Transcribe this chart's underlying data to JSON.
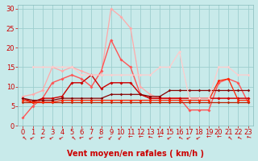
{
  "background_color": "#c8eaea",
  "grid_color": "#9ecece",
  "xlim": [
    -0.5,
    23.5
  ],
  "ylim": [
    0,
    31
  ],
  "yticks": [
    0,
    5,
    10,
    15,
    20,
    25,
    30
  ],
  "xticks": [
    0,
    1,
    2,
    3,
    4,
    5,
    6,
    7,
    8,
    9,
    10,
    11,
    12,
    13,
    14,
    15,
    16,
    17,
    18,
    19,
    20,
    21,
    22,
    23
  ],
  "lines": [
    {
      "x": [
        0,
        1,
        2,
        3,
        4,
        5,
        6,
        7,
        8,
        9,
        10,
        11,
        12,
        13,
        14,
        15,
        16,
        17,
        18,
        19,
        20,
        21,
        22,
        23
      ],
      "y": [
        7.5,
        8,
        9,
        15,
        14,
        15,
        14,
        13,
        13,
        30,
        28,
        25,
        10,
        8,
        7,
        7,
        7,
        7,
        7,
        7,
        7,
        7,
        7,
        7
      ],
      "color": "#ffaaaa",
      "lw": 0.9,
      "marker": "D",
      "ms": 2.0
    },
    {
      "x": [
        0,
        1,
        2,
        3,
        4,
        5,
        6,
        7,
        8,
        9,
        10,
        11,
        12,
        13,
        14,
        15,
        16,
        17,
        18,
        19,
        20,
        21,
        22,
        23
      ],
      "y": [
        2,
        5,
        7,
        11,
        12,
        13,
        12,
        10,
        14,
        22,
        17,
        15,
        8,
        7,
        7,
        7,
        7,
        4,
        4,
        4,
        11,
        12,
        11,
        6
      ],
      "color": "#ff5555",
      "lw": 1.0,
      "marker": "D",
      "ms": 2.0
    },
    {
      "x": [
        0,
        1,
        2,
        3,
        4,
        5,
        6,
        7,
        8,
        9,
        10,
        11,
        12,
        13,
        14,
        15,
        16,
        17,
        18,
        19,
        20,
        21,
        22,
        23
      ],
      "y": [
        7,
        6,
        7,
        7,
        7.5,
        11,
        11,
        13,
        9.5,
        11,
        11,
        11,
        8,
        7,
        7,
        7,
        7,
        7,
        7,
        7,
        7,
        7,
        7,
        7
      ],
      "color": "#cc0000",
      "lw": 1.0,
      "marker": "D",
      "ms": 2.0
    },
    {
      "x": [
        0,
        1,
        2,
        3,
        4,
        5,
        6,
        7,
        8,
        9,
        10,
        11,
        12,
        13,
        14,
        15,
        16,
        17,
        18,
        19,
        20,
        21,
        22,
        23
      ],
      "y": [
        7,
        6.5,
        6.5,
        6.5,
        7,
        7,
        7,
        7,
        7,
        8,
        8,
        8,
        8,
        7.5,
        7.5,
        9,
        9,
        9,
        9,
        9,
        9,
        9,
        9,
        9
      ],
      "color": "#880000",
      "lw": 0.9,
      "marker": "D",
      "ms": 1.8
    },
    {
      "x": [
        0,
        1,
        2,
        3,
        4,
        5,
        6,
        7,
        8,
        9,
        10,
        11,
        12,
        13,
        14,
        15,
        16,
        17,
        18,
        19,
        20,
        21,
        22,
        23
      ],
      "y": [
        6,
        6,
        6,
        6,
        6,
        6,
        6,
        6,
        6,
        6,
        6,
        6,
        6,
        6,
        6,
        6,
        6,
        6,
        6,
        6,
        6,
        6,
        6,
        6
      ],
      "color": "#bb2200",
      "lw": 0.9,
      "marker": "D",
      "ms": 1.8
    },
    {
      "x": [
        0,
        1,
        2,
        3,
        4,
        5,
        6,
        7,
        8,
        9,
        10,
        11,
        12,
        13,
        14,
        15,
        16,
        17,
        18,
        19,
        20,
        21,
        22,
        23
      ],
      "y": [
        6.5,
        6,
        6,
        6,
        6.5,
        6.5,
        6.5,
        6.5,
        6.5,
        6.5,
        6.5,
        6.5,
        6.5,
        6.5,
        6.5,
        6.5,
        6.5,
        6.5,
        6.5,
        6.5,
        11.5,
        12,
        6.5,
        6.5
      ],
      "color": "#ff2200",
      "lw": 0.9,
      "marker": "D",
      "ms": 1.8
    },
    {
      "x": [
        1,
        2,
        3,
        4,
        5,
        6,
        7,
        8,
        9,
        10,
        11,
        12,
        13,
        14,
        15,
        16,
        17,
        18,
        19,
        20,
        21,
        22,
        23
      ],
      "y": [
        15,
        15,
        15,
        15,
        15,
        13,
        13,
        13,
        13,
        13,
        13,
        13,
        13,
        15,
        15,
        19,
        7,
        7,
        7,
        15,
        15,
        13,
        13
      ],
      "color": "#ffcccc",
      "lw": 0.9,
      "marker": "D",
      "ms": 1.8
    }
  ],
  "xlabel": "Vent moyen/en rafales ( km/h )",
  "xlabel_color": "#cc0000",
  "xlabel_fontsize": 7,
  "tick_fontsize": 6,
  "tick_color": "#cc0000",
  "arrow_color": "#cc0000"
}
